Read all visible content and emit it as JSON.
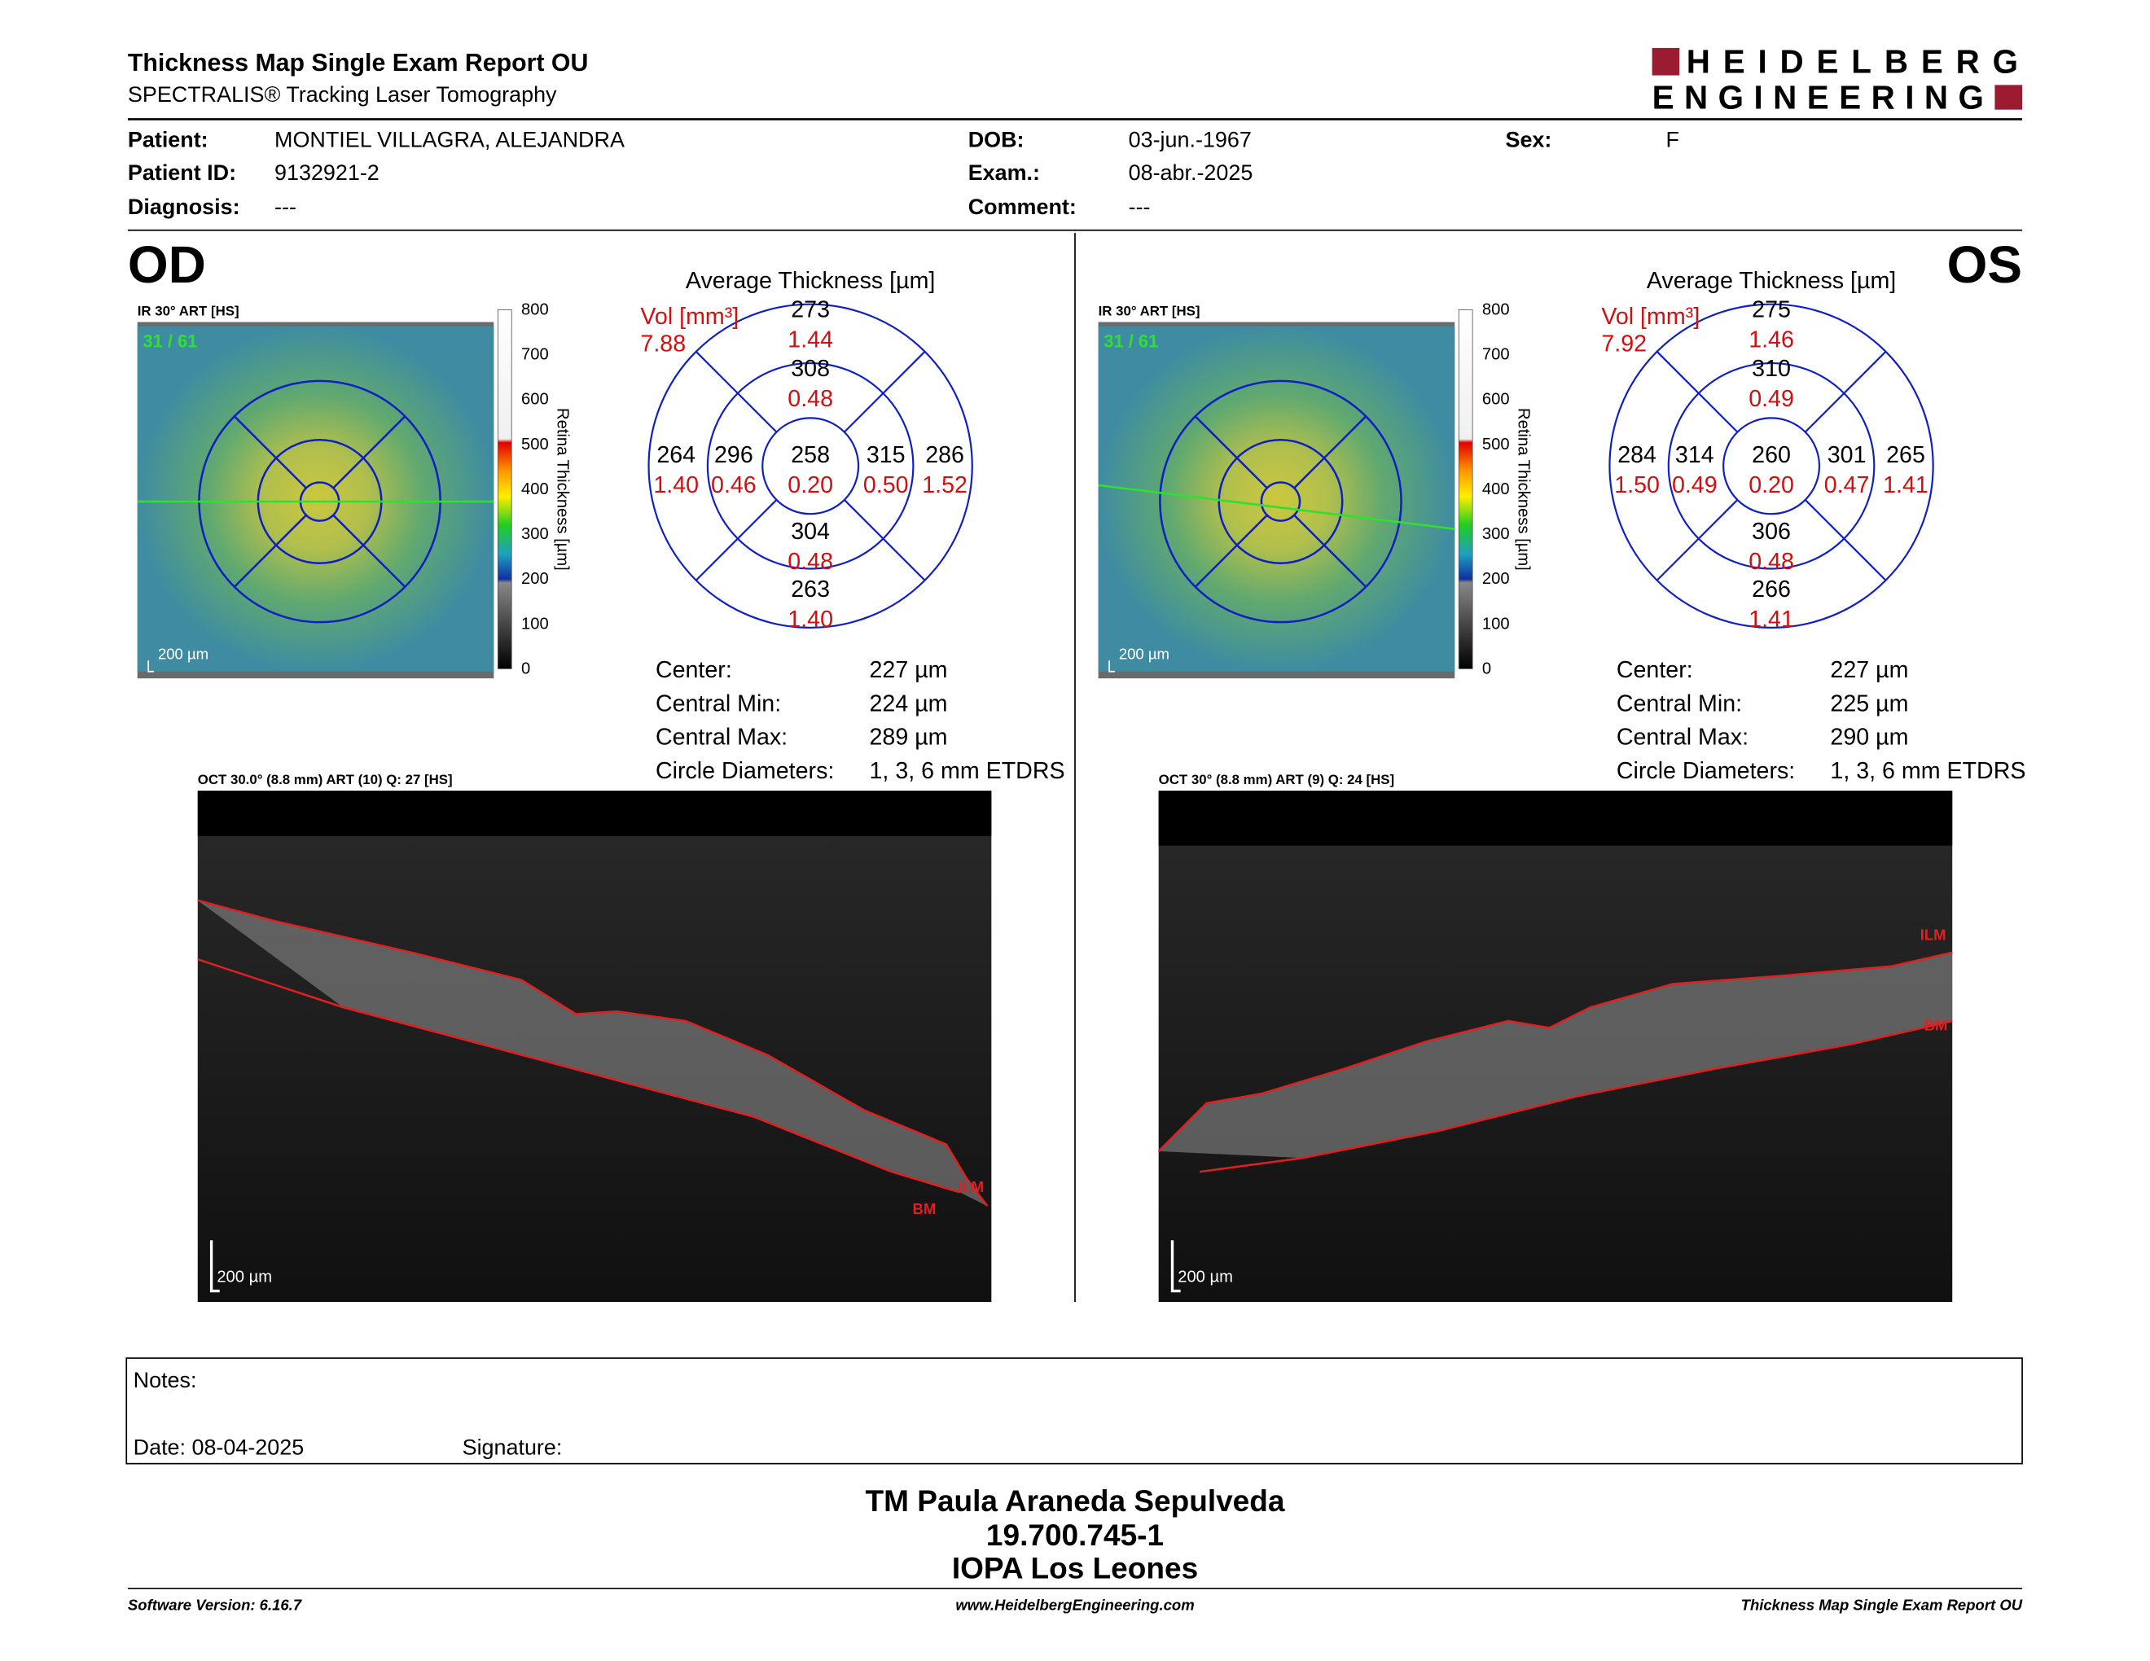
{
  "header": {
    "title": "Thickness Map Single Exam Report OU",
    "subtitle": "SPECTRALIS® Tracking Laser Tomography",
    "logo": [
      "HEIDELBERG",
      "ENGINEERING"
    ]
  },
  "patient": {
    "fields": [
      {
        "label": "Patient:",
        "value": "MONTIEL VILLAGRA, ALEJANDRA"
      },
      {
        "label": "Patient ID:",
        "value": "9132921-2"
      },
      {
        "label": "Diagnosis:",
        "value": "---"
      },
      {
        "label": "DOB:",
        "value": "03-jun.-1967"
      },
      {
        "label": "Exam.:",
        "value": "08-abr.-2025"
      },
      {
        "label": "Comment:",
        "value": "---"
      },
      {
        "label": "Sex:",
        "value": "F"
      }
    ]
  },
  "eyes": [
    {
      "label": "OD",
      "fundus": {
        "title": "IR 30° ART [HS]",
        "counter": "31 / 61",
        "scale": "200 µm"
      },
      "colorbar": {
        "ticks": [
          "800",
          "700",
          "600",
          "500",
          "400",
          "300",
          "200",
          "100",
          "0"
        ],
        "label": "Retina Thickness [µm]"
      },
      "grid": {
        "title": "Average Thickness [µm]",
        "vol_label": "Vol [mm³]",
        "vol_total": "7.88",
        "sectors": [
          {
            "thickness": "273",
            "volume": "1.44"
          },
          {
            "thickness": "308",
            "volume": "0.48"
          },
          {
            "thickness": "264",
            "volume": "1.40"
          },
          {
            "thickness": "296",
            "volume": "0.46"
          },
          {
            "thickness": "258",
            "volume": "0.20"
          },
          {
            "thickness": "315",
            "volume": "0.50"
          },
          {
            "thickness": "286",
            "volume": "1.52"
          },
          {
            "thickness": "304",
            "volume": "0.48"
          },
          {
            "thickness": "263",
            "volume": "1.40"
          }
        ]
      },
      "stats": [
        {
          "label": "Center:",
          "value": "227 µm"
        },
        {
          "label": "Central Min:",
          "value": "224 µm"
        },
        {
          "label": "Central Max:",
          "value": "289 µm"
        },
        {
          "label": "Circle Diameters:",
          "value": "1, 3, 6 mm ETDRS"
        }
      ],
      "oct": {
        "title": "OCT 30.0° (8.8 mm) ART (10) Q: 27 [HS]",
        "layers": [
          "ILM",
          "BM"
        ],
        "scale": "200 µm"
      }
    },
    {
      "label": "OS",
      "fundus": {
        "title": "IR 30° ART [HS]",
        "counter": "31 / 61",
        "scale": "200 µm"
      },
      "colorbar": {
        "ticks": [
          "800",
          "700",
          "600",
          "500",
          "400",
          "300",
          "200",
          "100",
          "0"
        ],
        "label": "Retina Thickness [µm]"
      },
      "grid": {
        "title": "Average Thickness [µm]",
        "vol_label": "Vol [mm³]",
        "vol_total": "7.92",
        "sectors": [
          {
            "thickness": "275",
            "volume": "1.46"
          },
          {
            "thickness": "310",
            "volume": "0.49"
          },
          {
            "thickness": "284",
            "volume": "1.50"
          },
          {
            "thickness": "314",
            "volume": "0.49"
          },
          {
            "thickness": "260",
            "volume": "0.20"
          },
          {
            "thickness": "301",
            "volume": "0.47"
          },
          {
            "thickness": "265",
            "volume": "1.41"
          },
          {
            "thickness": "306",
            "volume": "0.48"
          },
          {
            "thickness": "266",
            "volume": "1.41"
          }
        ]
      },
      "stats": [
        {
          "label": "Center:",
          "value": "227 µm"
        },
        {
          "label": "Central Min:",
          "value": "225 µm"
        },
        {
          "label": "Central Max:",
          "value": "290 µm"
        },
        {
          "label": "Circle Diameters:",
          "value": "1, 3, 6 mm ETDRS"
        }
      ],
      "oct": {
        "title": "OCT 30° (8.8 mm) ART (9) Q: 24 [HS]",
        "layers": [
          "ILM",
          "BM"
        ],
        "scale": "200 µm"
      }
    }
  ],
  "notes": {
    "label": "Notes:",
    "date": "Date: 08-04-2025",
    "signature": "Signature:"
  },
  "signature_block": [
    "TM Paula Araneda Sepulveda",
    "19.700.745-1",
    "IOPA Los Leones"
  ],
  "footer": {
    "left": "Software Version: 6.16.7",
    "center": "www.HeidelbergEngineering.com",
    "right": "Thickness Map Single Exam Report OU"
  }
}
